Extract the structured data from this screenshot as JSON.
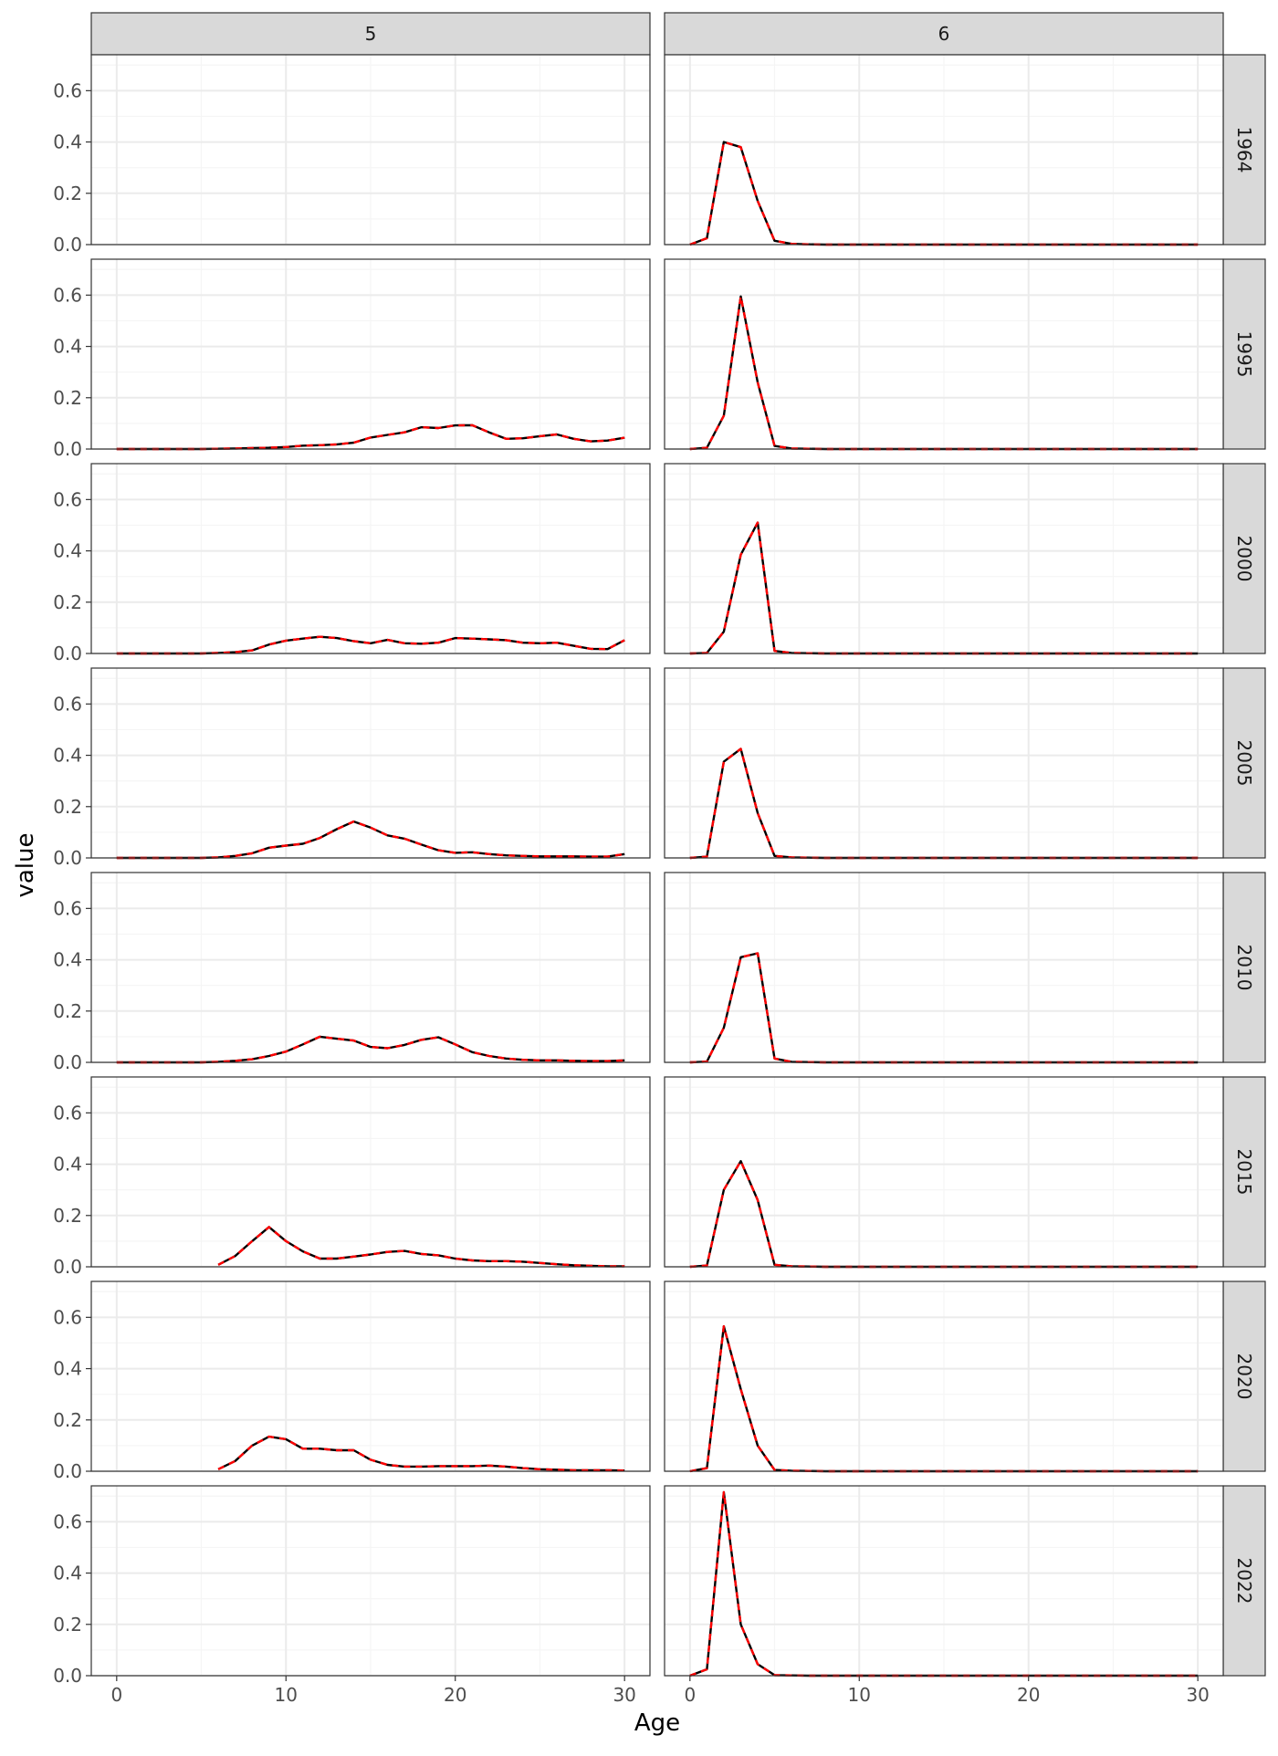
{
  "chart_data": {
    "type": "line",
    "layout": "facet_grid",
    "xlabel": "Age",
    "ylabel": "value",
    "column_facets": [
      "5",
      "6"
    ],
    "row_facets": [
      "1964",
      "1995",
      "2000",
      "2005",
      "2010",
      "2015",
      "2020",
      "2022"
    ],
    "xlim": [
      -1.5,
      31.5
    ],
    "ylim": [
      0,
      0.74
    ],
    "x_ticks": [
      "0",
      "10",
      "20",
      "30"
    ],
    "y_ticks": [
      "0.0",
      "0.2",
      "0.4",
      "0.6"
    ],
    "grid": true,
    "colors": {
      "series_black": "#000000",
      "series_red_dashed": "#ff0000",
      "strip_fill": "#d9d9d9",
      "grid_major": "#ebebeb",
      "grid_minor": "#f5f5f5",
      "panel_border": "#333333",
      "axis_text": "#4d4d4d"
    },
    "series_style": "black solid line with overlaid red dashed line of identical values",
    "panels": [
      {
        "col": "5",
        "row": "1964",
        "x": [],
        "y": []
      },
      {
        "col": "5",
        "row": "1995",
        "x": [
          0,
          1,
          2,
          3,
          4,
          5,
          6,
          7,
          8,
          9,
          10,
          11,
          12,
          13,
          14,
          15,
          16,
          17,
          18,
          19,
          20,
          21,
          22,
          23,
          24,
          25,
          26,
          27,
          28,
          29,
          30
        ],
        "y": [
          0,
          0,
          0,
          0,
          0,
          0,
          0.001,
          0.002,
          0.004,
          0.005,
          0.008,
          0.013,
          0.015,
          0.018,
          0.025,
          0.045,
          0.055,
          0.065,
          0.085,
          0.082,
          0.092,
          0.093,
          0.065,
          0.04,
          0.042,
          0.05,
          0.057,
          0.04,
          0.03,
          0.033,
          0.044
        ]
      },
      {
        "col": "5",
        "row": "2000",
        "x": [
          0,
          1,
          2,
          3,
          4,
          5,
          6,
          7,
          8,
          9,
          10,
          11,
          12,
          13,
          14,
          15,
          16,
          17,
          18,
          19,
          20,
          21,
          22,
          23,
          24,
          25,
          26,
          27,
          28,
          29,
          30
        ],
        "y": [
          0,
          0,
          0,
          0,
          0,
          0,
          0.002,
          0.005,
          0.012,
          0.035,
          0.05,
          0.058,
          0.065,
          0.06,
          0.048,
          0.04,
          0.053,
          0.04,
          0.038,
          0.042,
          0.06,
          0.058,
          0.055,
          0.052,
          0.042,
          0.04,
          0.042,
          0.03,
          0.018,
          0.017,
          0.052
        ]
      },
      {
        "col": "5",
        "row": "2005",
        "x": [
          0,
          1,
          2,
          3,
          4,
          5,
          6,
          7,
          8,
          9,
          10,
          11,
          12,
          13,
          14,
          15,
          16,
          17,
          18,
          19,
          20,
          21,
          22,
          23,
          24,
          25,
          26,
          27,
          28,
          29,
          30
        ],
        "y": [
          0,
          0,
          0,
          0,
          0,
          0,
          0.002,
          0.008,
          0.018,
          0.04,
          0.048,
          0.055,
          0.078,
          0.112,
          0.142,
          0.118,
          0.088,
          0.075,
          0.052,
          0.03,
          0.02,
          0.022,
          0.015,
          0.01,
          0.008,
          0.006,
          0.006,
          0.006,
          0.005,
          0.005,
          0.015
        ]
      },
      {
        "col": "5",
        "row": "2010",
        "x": [
          0,
          1,
          2,
          3,
          4,
          5,
          6,
          7,
          8,
          9,
          10,
          11,
          12,
          13,
          14,
          15,
          16,
          17,
          18,
          19,
          20,
          21,
          22,
          23,
          24,
          25,
          26,
          27,
          28,
          29,
          30
        ],
        "y": [
          0,
          0,
          0,
          0,
          0,
          0,
          0.002,
          0.006,
          0.012,
          0.025,
          0.042,
          0.07,
          0.1,
          0.092,
          0.085,
          0.06,
          0.055,
          0.068,
          0.088,
          0.098,
          0.07,
          0.04,
          0.025,
          0.015,
          0.01,
          0.008,
          0.008,
          0.006,
          0.005,
          0.005,
          0.008
        ]
      },
      {
        "col": "5",
        "row": "2015",
        "x": [
          6,
          7,
          8,
          9,
          10,
          11,
          12,
          13,
          14,
          15,
          16,
          17,
          18,
          19,
          20,
          21,
          22,
          23,
          24,
          25,
          26,
          27,
          28,
          29,
          30
        ],
        "y": [
          0.008,
          0.042,
          0.1,
          0.155,
          0.1,
          0.06,
          0.032,
          0.032,
          0.04,
          0.048,
          0.058,
          0.062,
          0.05,
          0.045,
          0.032,
          0.025,
          0.022,
          0.022,
          0.02,
          0.015,
          0.01,
          0.006,
          0.004,
          0.002,
          0.002
        ]
      },
      {
        "col": "5",
        "row": "2020",
        "x": [
          6,
          7,
          8,
          9,
          10,
          11,
          12,
          13,
          14,
          15,
          16,
          17,
          18,
          19,
          20,
          21,
          22,
          23,
          24,
          25,
          26,
          27,
          28,
          29,
          30
        ],
        "y": [
          0.008,
          0.04,
          0.1,
          0.135,
          0.125,
          0.088,
          0.088,
          0.082,
          0.082,
          0.045,
          0.025,
          0.018,
          0.018,
          0.02,
          0.02,
          0.02,
          0.022,
          0.018,
          0.012,
          0.008,
          0.006,
          0.004,
          0.004,
          0.004,
          0.003
        ]
      },
      {
        "col": "5",
        "row": "2022",
        "x": [],
        "y": []
      },
      {
        "col": "6",
        "row": "1964",
        "x": [
          0,
          1,
          2,
          3,
          4,
          5,
          6,
          7,
          8,
          9,
          10,
          15,
          20,
          25,
          30
        ],
        "y": [
          0,
          0.025,
          0.4,
          0.38,
          0.17,
          0.015,
          0.003,
          0.001,
          0,
          0,
          0,
          0,
          0,
          0,
          0
        ]
      },
      {
        "col": "6",
        "row": "1995",
        "x": [
          0,
          1,
          2,
          3,
          4,
          5,
          6,
          7,
          8,
          9,
          10,
          15,
          20,
          25,
          30
        ],
        "y": [
          0,
          0.005,
          0.13,
          0.595,
          0.26,
          0.012,
          0.002,
          0.001,
          0,
          0,
          0,
          0,
          0,
          0,
          0
        ]
      },
      {
        "col": "6",
        "row": "2000",
        "x": [
          0,
          1,
          2,
          3,
          4,
          5,
          6,
          7,
          8,
          9,
          10,
          15,
          20,
          25,
          30
        ],
        "y": [
          0,
          0.002,
          0.085,
          0.385,
          0.51,
          0.01,
          0.002,
          0.001,
          0,
          0,
          0,
          0,
          0,
          0,
          0
        ]
      },
      {
        "col": "6",
        "row": "2005",
        "x": [
          0,
          1,
          2,
          3,
          4,
          5,
          6,
          7,
          8,
          9,
          10,
          15,
          20,
          25,
          30
        ],
        "y": [
          0,
          0.005,
          0.375,
          0.425,
          0.175,
          0.008,
          0.002,
          0.001,
          0,
          0,
          0,
          0,
          0,
          0,
          0
        ]
      },
      {
        "col": "6",
        "row": "2010",
        "x": [
          0,
          1,
          2,
          3,
          4,
          5,
          6,
          7,
          8,
          9,
          10,
          15,
          20,
          25,
          30
        ],
        "y": [
          0,
          0.003,
          0.135,
          0.41,
          0.425,
          0.015,
          0.002,
          0.001,
          0,
          0,
          0,
          0,
          0,
          0,
          0
        ]
      },
      {
        "col": "6",
        "row": "2015",
        "x": [
          0,
          1,
          2,
          3,
          4,
          5,
          6,
          7,
          8,
          9,
          10,
          15,
          20,
          25,
          30
        ],
        "y": [
          0,
          0.005,
          0.3,
          0.412,
          0.26,
          0.008,
          0.002,
          0.001,
          0,
          0,
          0,
          0,
          0,
          0,
          0
        ]
      },
      {
        "col": "6",
        "row": "2020",
        "x": [
          0,
          1,
          2,
          3,
          4,
          5,
          6,
          7,
          8,
          9,
          10,
          15,
          20,
          25,
          30
        ],
        "y": [
          0,
          0.012,
          0.565,
          0.32,
          0.1,
          0.005,
          0.002,
          0.001,
          0,
          0,
          0,
          0,
          0,
          0,
          0
        ]
      },
      {
        "col": "6",
        "row": "2022",
        "x": [
          0,
          1,
          2,
          3,
          4,
          5,
          6,
          7,
          8,
          9,
          10,
          15,
          20,
          25,
          30
        ],
        "y": [
          0,
          0.025,
          0.715,
          0.2,
          0.045,
          0.002,
          0.001,
          0,
          0,
          0,
          0,
          0,
          0,
          0,
          0
        ]
      }
    ]
  }
}
